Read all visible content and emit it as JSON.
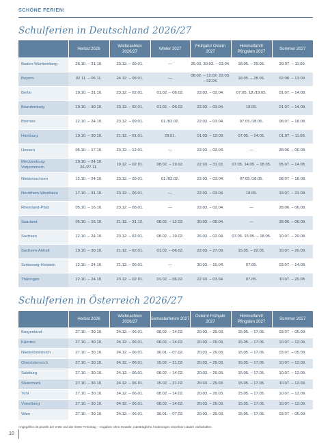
{
  "page": {
    "top_label": "SCHÖNE FERIEN!",
    "page_number": "10",
    "footnote": "Angegeben ist jeweils der erste und der letzte Ferientag – Angaben ohne Gewähr, nachträgliche Änderungen einzelner Länder vorbehalten."
  },
  "germany": {
    "title": "Schulferien in Deutschland 2026/27",
    "headers": [
      "",
      "Herbst 2026",
      "Weihnachten 2026/27",
      "Winter 2027",
      "Frühjahr/ Ostern 2027",
      "Himmelfahrt/ Pfingsten 2027",
      "Sommer 2027"
    ],
    "rows": [
      [
        "Baden-Württemberg",
        "26.10. – 31.10.",
        "23.12. – 09.01.",
        "—",
        "25.03. 30.03. – 03.04.",
        "18.05. – 29.05.",
        "29.07. – 11.09."
      ],
      [
        "Bayern",
        "02.11. – 06.11.",
        "24.12. – 08.01.",
        "—",
        "08.02. – 12.02. 22.03. – 02.04.",
        "18.05. – 28.05.",
        "02.08. – 13.09."
      ],
      [
        "Berlin",
        "19.10. – 31.10.",
        "23.12. – 02.01.",
        "01.02. – 06.02.",
        "22.03. – 02.04.",
        "07.05. 18./19.05.",
        "01.07. – 14.08."
      ],
      [
        "Brandenburg",
        "19.10. – 30.10.",
        "23.12. – 02.01.",
        "01.02. – 06.02.",
        "22.03. – 03.04.",
        "18.05.",
        "01.07. – 14.08."
      ],
      [
        "Bremen",
        "12.10. – 24.10.",
        "23.12. – 09.01.",
        "01./02.02.",
        "22.03. – 03.04.",
        "07.05./18.05.",
        "08.07. – 18.08."
      ],
      [
        "Hamburg",
        "19.10. – 30.10.",
        "21.12. – 01.01.",
        "29.01.",
        "01.03. – 12.03.",
        "07.05. – 14.05.",
        "01.07. – 11.08."
      ],
      [
        "Hessen",
        "05.10. – 17.10.",
        "23.12. – 12.01.",
        "—",
        "22.03. – 02.04.",
        "—",
        "28.06. – 06.08."
      ],
      [
        "Mecklenburg-Vorpommern",
        "19.10. – 24.10. 26./27.11.",
        "19.12. – 02.01.",
        "08.02. – 19.02.",
        "22.03. – 31.03.",
        "07.05. 14.05. – 18.05.",
        "05.07. – 14.08."
      ],
      [
        "Niedersachsen",
        "12.10. – 24.10.",
        "23.12. – 09.01.",
        "01./02.02.",
        "22.03. – 03.04.",
        "07.05./18.05.",
        "08.07. – 18.08."
      ],
      [
        "Nordrhein-Westfalen",
        "17.10. – 31.10.",
        "23.12. – 06.01.",
        "—",
        "22.03. – 03.04.",
        "18.05.",
        "19.07. – 31.08."
      ],
      [
        "Rheinland-Pfalz",
        "05.10. – 16.10.",
        "23.12. – 08.01.",
        "—",
        "22.03. – 02.04.",
        "—",
        "28.06. – 06.08."
      ],
      [
        "Saarland",
        "05.10. – 16.10.",
        "21.12. – 31.12.",
        "08.02. – 12.02.",
        "30.03. – 09.04.",
        "—",
        "28.06. – 06.08."
      ],
      [
        "Sachsen",
        "12.10. – 24.10.",
        "23.12. – 02.01.",
        "08.02. – 19.02.",
        "26.03. – 02.04.",
        "07.05. 15.05. – 18.05.",
        "10.07. – 20.08."
      ],
      [
        "Sachsen-Anhalt",
        "19.10. – 30.10.",
        "21.12. – 02.01.",
        "01.02. – 06.02.",
        "22.03. – 27.03.",
        "15.05. – 22.05.",
        "10.07. – 20.08."
      ],
      [
        "Schleswig-Holstein",
        "12.10. – 24.10.",
        "21.12. – 06.01.",
        "—",
        "30.03. – 10.04.",
        "07.05.",
        "03.07. – 14.08."
      ],
      [
        "Thüringen",
        "12.10. – 24.10.",
        "23.12. – 02.01.",
        "01.02. – 06.02.",
        "22.03. – 03.04.",
        "07.05.",
        "10.07. – 20.08."
      ]
    ]
  },
  "austria": {
    "title": "Schulferien in Österreich 2026/27",
    "headers": [
      "",
      "Herbst 2026",
      "Weihnachten 2026/27",
      "Semesterferien 2027",
      "Ostern/ Frühjahr 2027",
      "Himmelfahrt/ Pfingsten 2027",
      "Sommer 2027"
    ],
    "rows": [
      [
        "Burgenland",
        "27.10. – 30.10.",
        "24.12. – 06.01.",
        "08.02. – 14.02.",
        "20.03. – 29.03.",
        "15.05. – 17.05.",
        "03.07. – 05.09."
      ],
      [
        "Kärnten",
        "27.10. – 30.10.",
        "24.12. – 06.01.",
        "08.02. – 14.02.",
        "20.03. – 29.03.",
        "15.05. – 17.05.",
        "10.07. – 12.09."
      ],
      [
        "Niederösterreich",
        "27.10. – 30.10.",
        "24.12. – 06.01.",
        "30.01. – 07.02.",
        "20.03. – 29.03.",
        "15.05. – 17.05.",
        "03.07. – 05.09."
      ],
      [
        "Oberösterreich",
        "27.10. – 30.10.",
        "24.12. – 06.01.",
        "15.02. – 21.02.",
        "20.03. – 29.03.",
        "15.05. – 17.05.",
        "10.07. – 12.09."
      ],
      [
        "Salzburg",
        "27.10. – 30.10.",
        "24.12. – 06.01.",
        "08.02. – 14.02.",
        "20.03. – 29.03.",
        "15.05. – 17.05.",
        "10.07. – 12.09."
      ],
      [
        "Steiermark",
        "27.10. – 30.10.",
        "24.12. – 06.01.",
        "15.02. – 21.02.",
        "20.03. – 29.03.",
        "15.05. – 17.05.",
        "10.07. – 12.09."
      ],
      [
        "Tirol",
        "27.10. – 30.10.",
        "24.12. – 06.01.",
        "08.02. – 14.02.",
        "20.03. – 29.03.",
        "15.05. – 17.05.",
        "10.07. – 12.09."
      ],
      [
        "Vorarlberg",
        "27.10. – 30.10.",
        "24.12. – 06.01.",
        "08.02. – 14.02.",
        "20.03. – 29.03.",
        "15.05. – 17.05.",
        "10.07. – 12.09."
      ],
      [
        "Wien",
        "27.10. – 30.10.",
        "24.12. – 06.01.",
        "30.01. – 07.02.",
        "20.03. – 29.03.",
        "15.05. – 17.05.",
        "03.07. – 05.09."
      ]
    ]
  }
}
